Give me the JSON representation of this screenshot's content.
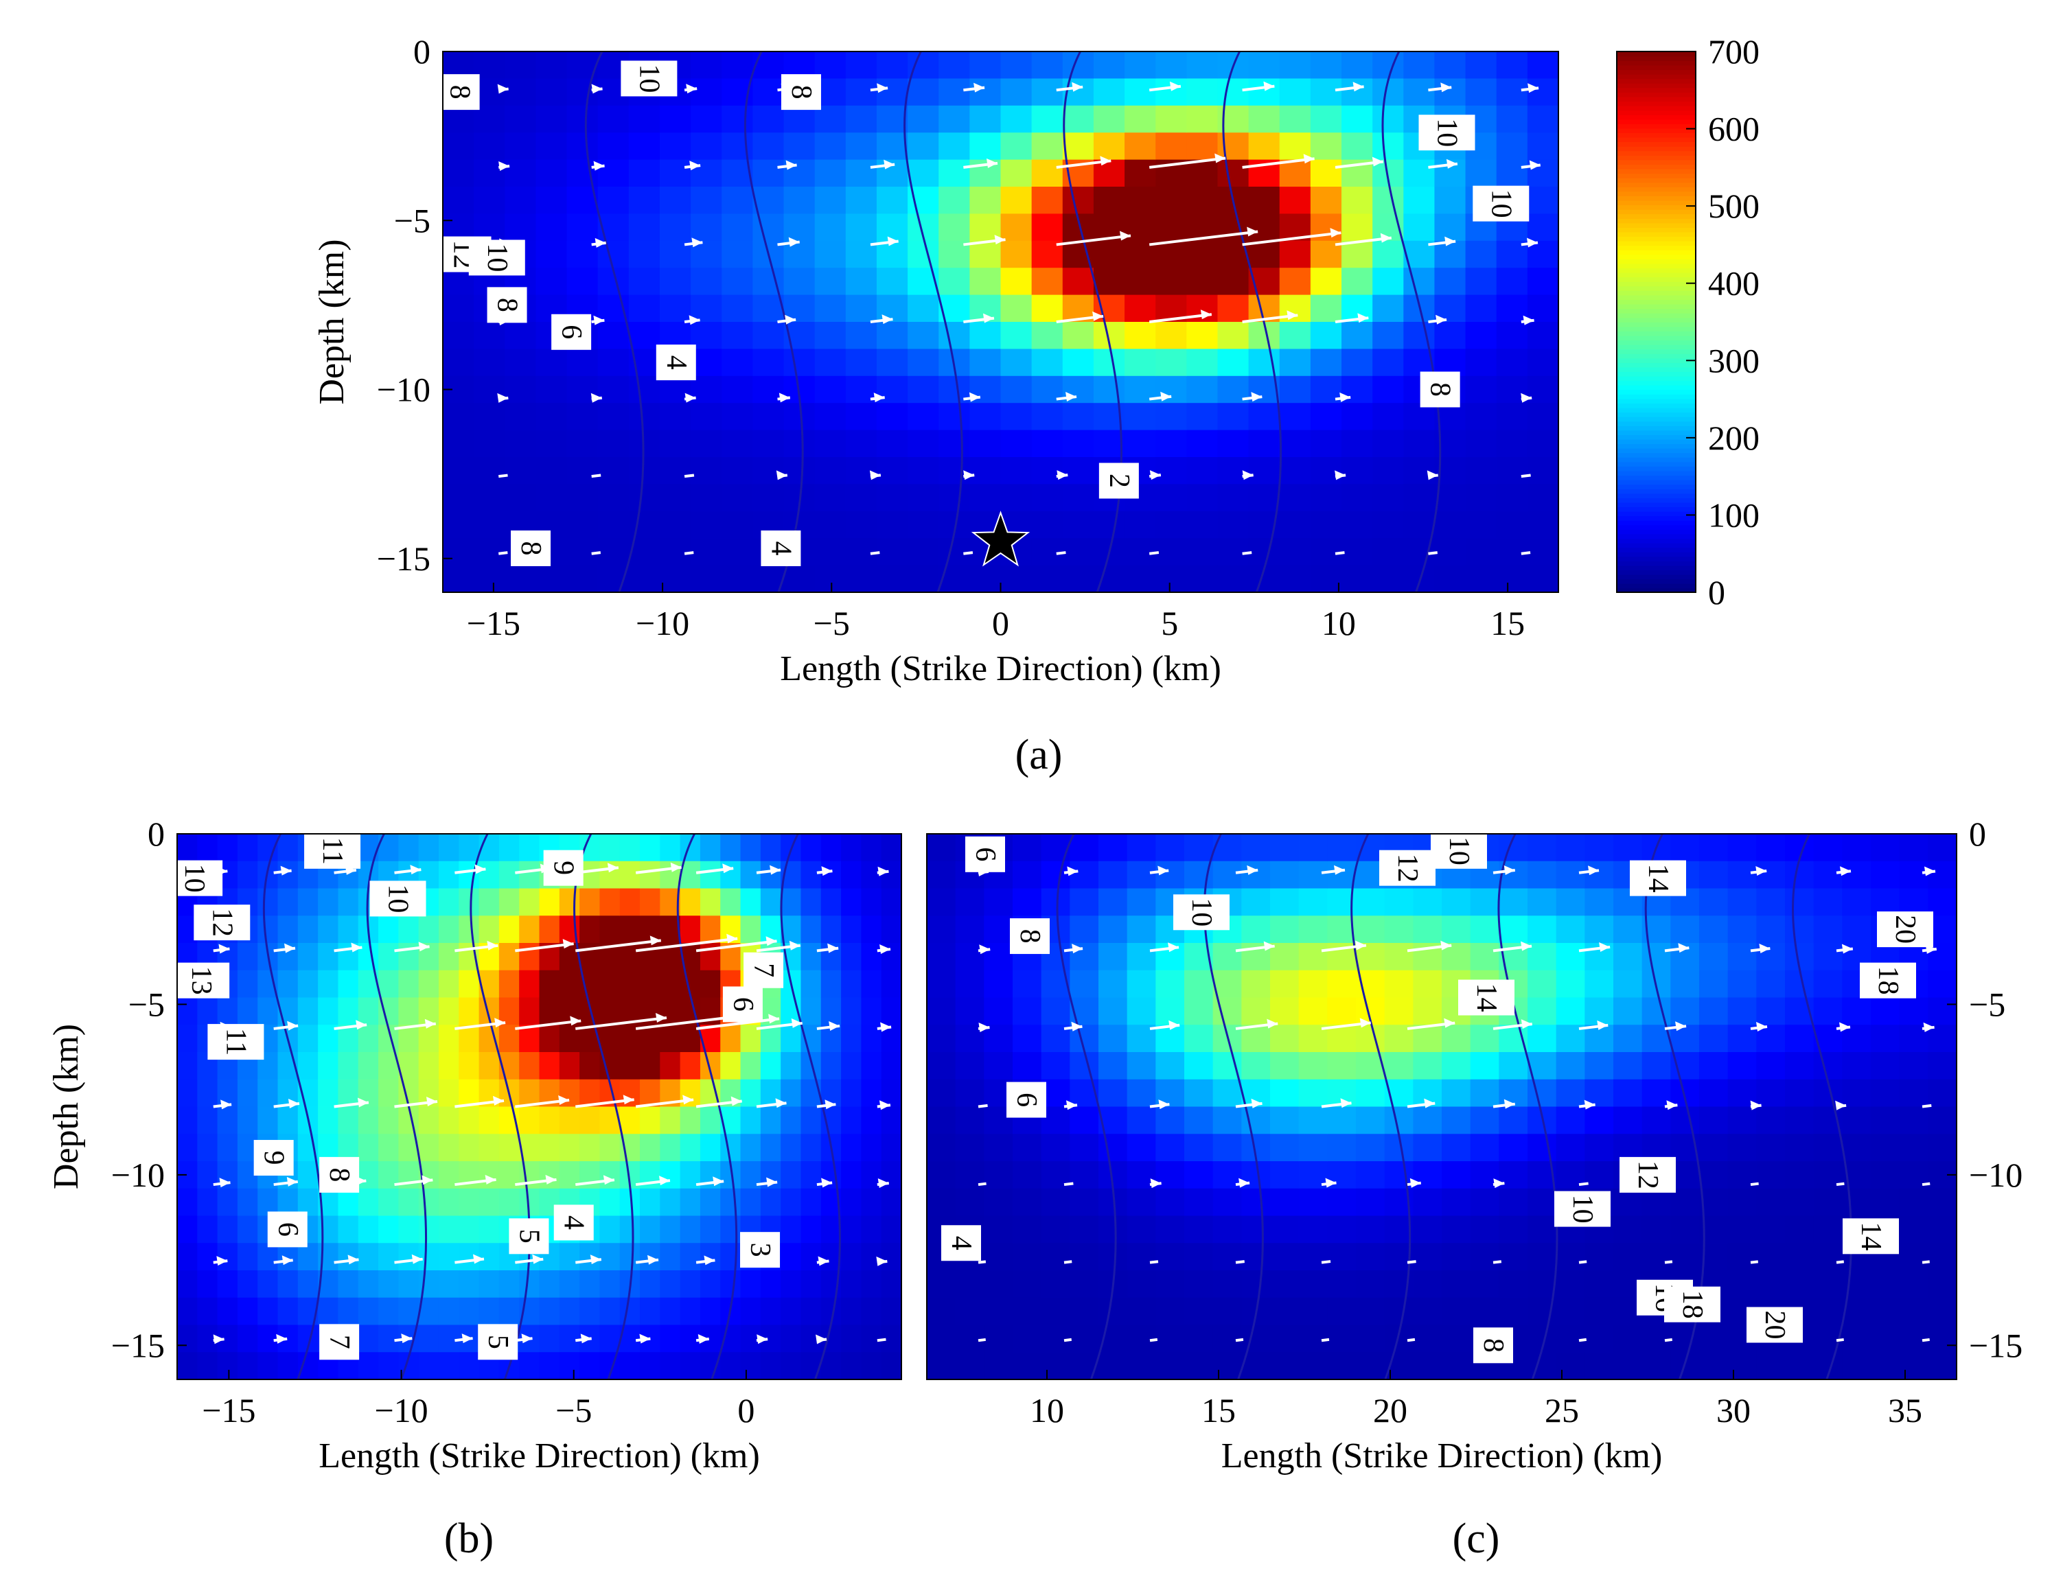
{
  "chart_data": [
    {
      "panel": "a",
      "caption": "(a)",
      "type": "heatmap",
      "xlabel": "Length (Strike Direction) (km)",
      "ylabel": "Depth (km)",
      "xlim": [
        -16.5,
        16.5
      ],
      "ylim": [
        -16,
        0
      ],
      "xticks": [
        -15,
        -10,
        -5,
        0,
        5,
        10,
        15
      ],
      "yticks": [
        0,
        -5,
        -10,
        -15
      ],
      "colorbar": {
        "min": 0,
        "max": 700,
        "ticks": [
          0,
          100,
          200,
          300,
          400,
          500,
          600,
          700
        ],
        "colormap": "jet"
      },
      "hypocenter": {
        "x": 0,
        "y": -14.5,
        "marker": "star"
      },
      "slip_patches": [
        {
          "x": 5.5,
          "y": -5.5,
          "sx": 3.2,
          "sy": 2.0,
          "amp": 690
        },
        {
          "x": 3.0,
          "y": -6.0,
          "sx": 4.5,
          "sy": 2.8,
          "amp": 160
        },
        {
          "x": 4.0,
          "y": -4.0,
          "sx": 8.0,
          "sy": 4.0,
          "amp": 120
        },
        {
          "x": -7.0,
          "y": -6.0,
          "sx": 5.0,
          "sy": 2.5,
          "amp": 60
        },
        {
          "x": 11.0,
          "y": -2.5,
          "sx": 4.0,
          "sy": 2.5,
          "amp": 90
        }
      ],
      "slip_base": 45,
      "contour_labels": [
        {
          "text": "8",
          "x": -16,
          "y": -1.2
        },
        {
          "text": "10",
          "x": -10.4,
          "y": -0.8
        },
        {
          "text": "8",
          "x": -5.9,
          "y": -1.2
        },
        {
          "text": "10",
          "x": 13.2,
          "y": -2.4
        },
        {
          "text": "10",
          "x": 14.8,
          "y": -4.5
        },
        {
          "text": "12",
          "x": -15.9,
          "y": -6.0
        },
        {
          "text": "10",
          "x": -14.9,
          "y": -6.1
        },
        {
          "text": "8",
          "x": -14.6,
          "y": -7.5
        },
        {
          "text": "6",
          "x": -12.7,
          "y": -8.3
        },
        {
          "text": "4",
          "x": -9.6,
          "y": -9.2
        },
        {
          "text": "8",
          "x": 13.0,
          "y": -10.0
        },
        {
          "text": "2",
          "x": 3.5,
          "y": -12.7
        },
        {
          "text": "8",
          "x": -13.9,
          "y": -14.7
        },
        {
          "text": "4",
          "x": -6.5,
          "y": -14.7
        }
      ]
    },
    {
      "panel": "b",
      "caption": "(b)",
      "type": "heatmap",
      "xlabel": "Length (Strike Direction) (km)",
      "ylabel": "Depth (km)",
      "xlim": [
        -16.5,
        4.5
      ],
      "ylim": [
        -16,
        0
      ],
      "xticks": [
        -15,
        -10,
        -5,
        0
      ],
      "yticks": [
        0,
        -5,
        -10,
        -15
      ],
      "slip_patches": [
        {
          "x": -3.0,
          "y": -4.5,
          "sx": 2.2,
          "sy": 2.0,
          "amp": 700
        },
        {
          "x": -6.0,
          "y": -7.0,
          "sx": 4.5,
          "sy": 4.0,
          "amp": 230
        },
        {
          "x": -7.0,
          "y": -5.0,
          "sx": 6.0,
          "sy": 6.0,
          "amp": 180
        },
        {
          "x": -11.0,
          "y": -11.0,
          "sx": 3.0,
          "sy": 3.0,
          "amp": 80
        }
      ],
      "slip_base": 30,
      "contour_labels": [
        {
          "text": "10",
          "x": -16,
          "y": -1.3
        },
        {
          "text": "11",
          "x": -12.0,
          "y": -0.5
        },
        {
          "text": "10",
          "x": -10.1,
          "y": -1.9
        },
        {
          "text": "9",
          "x": -5.3,
          "y": -1.0
        },
        {
          "text": "12",
          "x": -15.2,
          "y": -2.6
        },
        {
          "text": "13",
          "x": -15.8,
          "y": -4.3
        },
        {
          "text": "7",
          "x": 0.5,
          "y": -4.0
        },
        {
          "text": "6",
          "x": -0.1,
          "y": -5.0
        },
        {
          "text": "11",
          "x": -14.8,
          "y": -6.1
        },
        {
          "text": "9",
          "x": -13.7,
          "y": -9.5
        },
        {
          "text": "8",
          "x": -11.8,
          "y": -10.0
        },
        {
          "text": "6",
          "x": -13.3,
          "y": -11.6
        },
        {
          "text": "5",
          "x": -6.3,
          "y": -11.8
        },
        {
          "text": "4",
          "x": -5.0,
          "y": -11.4
        },
        {
          "text": "3",
          "x": 0.4,
          "y": -12.2
        },
        {
          "text": "7",
          "x": -11.8,
          "y": -14.9
        },
        {
          "text": "5",
          "x": -7.2,
          "y": -14.9
        }
      ]
    },
    {
      "panel": "c",
      "caption": "(c)",
      "type": "heatmap",
      "xlabel": "Length (Strike Direction) (km)",
      "ylabel": "",
      "xlim": [
        6.5,
        36.5
      ],
      "ylim": [
        -16,
        0
      ],
      "xticks": [
        10,
        15,
        20,
        25,
        30,
        35
      ],
      "yticks": [
        0,
        -5,
        -10,
        -15
      ],
      "slip_patches": [
        {
          "x": 18.5,
          "y": -5.0,
          "sx": 4.0,
          "sy": 2.2,
          "amp": 220
        },
        {
          "x": 23.0,
          "y": -4.5,
          "sx": 4.5,
          "sy": 2.2,
          "amp": 120
        },
        {
          "x": 14.0,
          "y": -4.0,
          "sx": 3.5,
          "sy": 3.0,
          "amp": 90
        },
        {
          "x": 27.0,
          "y": -3.0,
          "sx": 10.0,
          "sy": 3.0,
          "amp": 90
        },
        {
          "x": 18.0,
          "y": -8.0,
          "sx": 4.0,
          "sy": 2.5,
          "amp": 70
        }
      ],
      "slip_base": 30,
      "contour_labels": [
        {
          "text": "6",
          "x": 8.2,
          "y": -0.6
        },
        {
          "text": "10",
          "x": 22.0,
          "y": -0.5
        },
        {
          "text": "12",
          "x": 20.5,
          "y": -1.0
        },
        {
          "text": "14",
          "x": 27.8,
          "y": -1.3
        },
        {
          "text": "10",
          "x": 14.5,
          "y": -2.3
        },
        {
          "text": "8",
          "x": 9.5,
          "y": -3.0
        },
        {
          "text": "20",
          "x": 35.0,
          "y": -2.8
        },
        {
          "text": "18",
          "x": 34.5,
          "y": -4.3
        },
        {
          "text": "14",
          "x": 22.8,
          "y": -4.8
        },
        {
          "text": "6",
          "x": 9.4,
          "y": -7.8
        },
        {
          "text": "12",
          "x": 27.5,
          "y": -10.0
        },
        {
          "text": "10",
          "x": 25.6,
          "y": -11.0
        },
        {
          "text": "14",
          "x": 34.0,
          "y": -11.8
        },
        {
          "text": "4",
          "x": 7.5,
          "y": -12.0
        },
        {
          "text": "16",
          "x": 28.0,
          "y": -13.6
        },
        {
          "text": "18",
          "x": 28.8,
          "y": -13.8
        },
        {
          "text": "20",
          "x": 31.2,
          "y": -14.4
        },
        {
          "text": "8",
          "x": 23.0,
          "y": -15.0
        }
      ]
    }
  ]
}
